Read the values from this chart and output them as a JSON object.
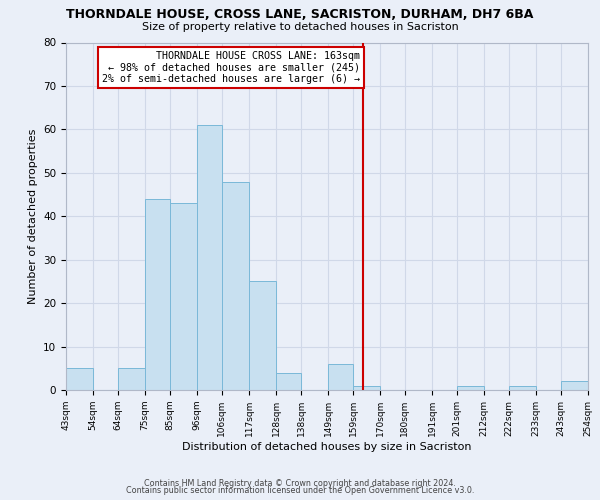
{
  "title": "THORNDALE HOUSE, CROSS LANE, SACRISTON, DURHAM, DH7 6BA",
  "subtitle": "Size of property relative to detached houses in Sacriston",
  "xlabel": "Distribution of detached houses by size in Sacriston",
  "ylabel": "Number of detached properties",
  "bar_edges": [
    43,
    54,
    64,
    75,
    85,
    96,
    106,
    117,
    128,
    138,
    149,
    159,
    170,
    180,
    191,
    201,
    212,
    222,
    233,
    243,
    254
  ],
  "bar_heights": [
    5,
    0,
    5,
    44,
    43,
    61,
    48,
    25,
    4,
    0,
    6,
    1,
    0,
    0,
    0,
    1,
    0,
    1,
    0,
    2
  ],
  "bar_color": "#c8e0f0",
  "bar_edge_color": "#7ab8d8",
  "vline_x": 163,
  "vline_color": "#cc0000",
  "annotation_text": "THORNDALE HOUSE CROSS LANE: 163sqm\n← 98% of detached houses are smaller (245)\n2% of semi-detached houses are larger (6) →",
  "annotation_box_color": "#ffffff",
  "annotation_box_edge": "#cc0000",
  "ylim": [
    0,
    80
  ],
  "yticks": [
    0,
    10,
    20,
    30,
    40,
    50,
    60,
    70,
    80
  ],
  "tick_labels": [
    "43sqm",
    "54sqm",
    "64sqm",
    "75sqm",
    "85sqm",
    "96sqm",
    "106sqm",
    "117sqm",
    "128sqm",
    "138sqm",
    "149sqm",
    "159sqm",
    "170sqm",
    "180sqm",
    "191sqm",
    "201sqm",
    "212sqm",
    "222sqm",
    "233sqm",
    "243sqm",
    "254sqm"
  ],
  "footer_line1": "Contains HM Land Registry data © Crown copyright and database right 2024.",
  "footer_line2": "Contains public sector information licensed under the Open Government Licence v3.0.",
  "grid_color": "#d0d8e8",
  "background_color": "#eaeff8"
}
